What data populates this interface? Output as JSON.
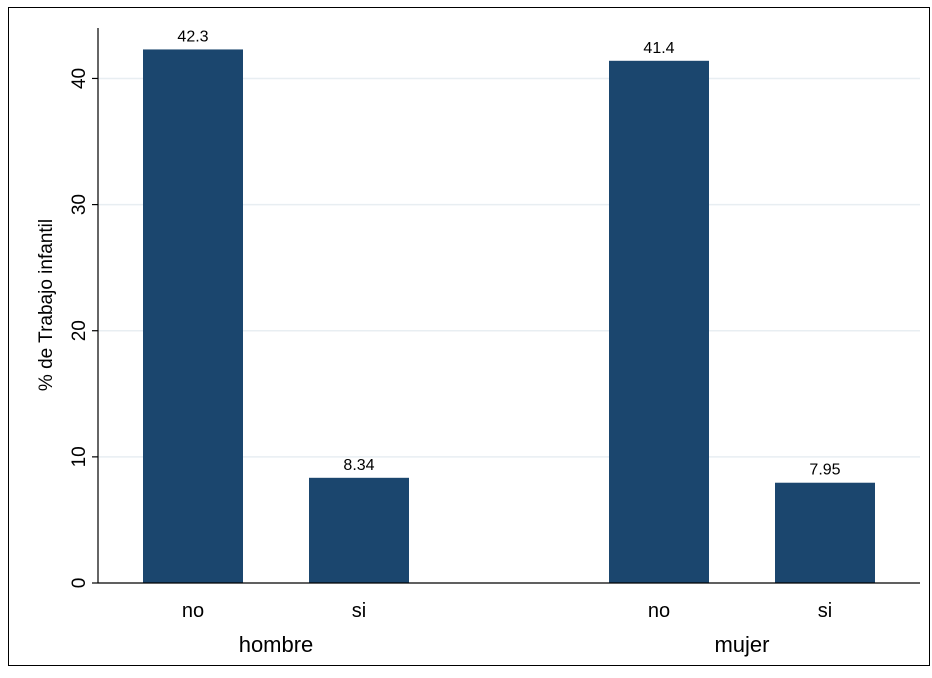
{
  "chart_data": {
    "type": "bar",
    "groups": [
      {
        "name": "hombre",
        "categories": [
          "no",
          "si"
        ],
        "values": [
          42.3,
          8.34
        ],
        "labels": [
          "42.3",
          "8.34"
        ]
      },
      {
        "name": "mujer",
        "categories": [
          "no",
          "si"
        ],
        "values": [
          41.4,
          7.95
        ],
        "labels": [
          "41.4",
          "7.95"
        ]
      }
    ],
    "ylabel": "% de Trabajo infantil",
    "ylim": [
      0,
      44
    ],
    "yticks": [
      0,
      10,
      20,
      30,
      40
    ],
    "grid": true,
    "colors": {
      "bar": "#1b466e",
      "grid": "#e8eef2",
      "axis": "#000000",
      "frame": "#000000",
      "background": "#ffffff"
    }
  }
}
